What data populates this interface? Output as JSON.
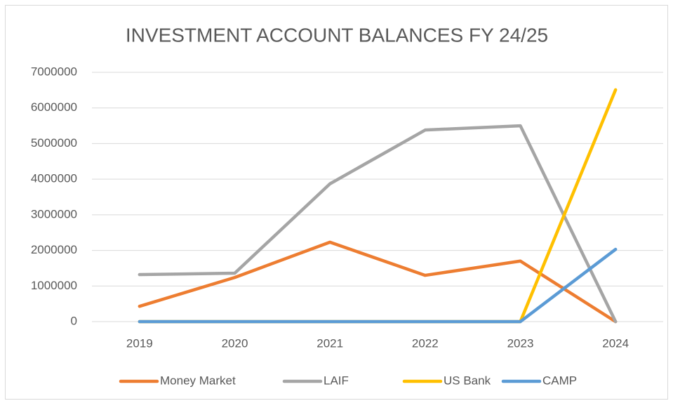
{
  "chart_data": {
    "type": "line",
    "title": "INVESTMENT ACCOUNT BALANCES FY 24/25",
    "categories": [
      "2019",
      "2020",
      "2021",
      "2022",
      "2023",
      "2024"
    ],
    "series": [
      {
        "name": "Money Market",
        "color": "#ed7d31",
        "values": [
          430000,
          1240000,
          2230000,
          1300000,
          1700000,
          0
        ]
      },
      {
        "name": "LAIF",
        "color": "#a5a5a5",
        "values": [
          1320000,
          1360000,
          3870000,
          5380000,
          5500000,
          0
        ]
      },
      {
        "name": "US Bank",
        "color": "#ffc000",
        "values": [
          0,
          0,
          0,
          0,
          0,
          6510000
        ]
      },
      {
        "name": "CAMP",
        "color": "#5b9bd5",
        "values": [
          0,
          0,
          0,
          0,
          0,
          2030000
        ]
      }
    ],
    "ylim": [
      0,
      7000000
    ],
    "yticks": [
      0,
      1000000,
      2000000,
      3000000,
      4000000,
      5000000,
      6000000,
      7000000
    ],
    "grid": true,
    "legend": "bottom"
  }
}
